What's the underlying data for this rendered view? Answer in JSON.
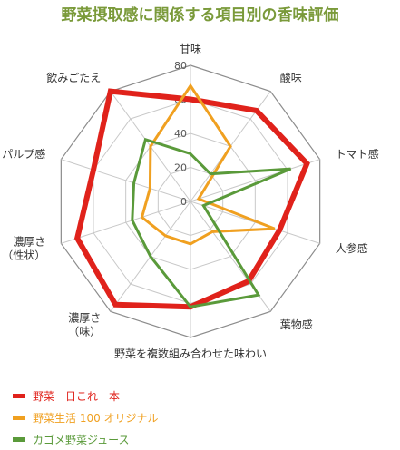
{
  "chart_data": {
    "type": "radar",
    "title": "野菜摂取感に関係する項目別の香味評価",
    "categories": [
      "甘味",
      "酸味",
      "トマト感",
      "人参感",
      "葉物感",
      "野菜を複数組み合わせた味わい",
      "濃厚さ\n（味）",
      "濃厚さ\n（性状）",
      "パルプ感",
      "飲みごたえ"
    ],
    "rlim": [
      0,
      80
    ],
    "ticks": [
      0,
      20,
      40,
      60,
      80
    ],
    "grid": true,
    "legend_position": "bottom-left",
    "series": [
      {
        "name": "野菜一日これ一本",
        "color": "#e0221b",
        "values": [
          60,
          66,
          72,
          55,
          58,
          62,
          75,
          70,
          60,
          80
        ]
      },
      {
        "name": "野菜生活 100 オリジナル",
        "color": "#f0a020",
        "values": [
          68,
          40,
          5,
          52,
          22,
          25,
          25,
          30,
          25,
          40
        ]
      },
      {
        "name": "カゴメ野菜ジュース",
        "color": "#5a9a3a",
        "values": [
          28,
          20,
          62,
          8,
          68,
          62,
          40,
          36,
          35,
          45
        ]
      }
    ]
  }
}
